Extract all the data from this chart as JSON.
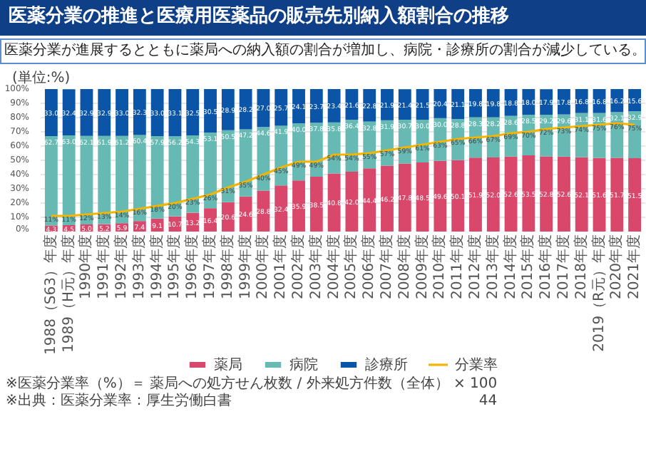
{
  "chart_data": {
    "type": "bar",
    "stacked": true,
    "title": "医薬分業の推進と医療用医薬品の販売先別納入額割合の推移",
    "subtitle": "医薬分業が進展するとともに薬局への納入額の割合が増加し、病院・診療所の割合が減少している。",
    "ylabel": "(単位:%)",
    "categories": [
      "1988（S63）年度",
      "1989（H元）年度",
      "1990年度",
      "1991年度",
      "1992年度",
      "1993年度",
      "1994年度",
      "1995年度",
      "1996年度",
      "1997年度",
      "1998年度",
      "1999年度",
      "2000年度",
      "2001年度",
      "2002年度",
      "2003年度",
      "2004年度",
      "2005年度",
      "2006年度",
      "2007年度",
      "2008年度",
      "2009年度",
      "2010年度",
      "2011年度",
      "2012年度",
      "2013年度",
      "2014年度",
      "2015年度",
      "2016年度",
      "2017年度",
      "2018年度",
      "2019（R元）年度",
      "2020年度",
      "2021年度"
    ],
    "series": [
      {
        "name": "薬局",
        "color": "#d9476b",
        "values": [
          4.3,
          4.5,
          5.0,
          5.2,
          5.9,
          7.4,
          9.1,
          10.7,
          13.2,
          16.4,
          20.6,
          24.6,
          28.8,
          32.4,
          35.9,
          38.5,
          40.8,
          42.0,
          44.4,
          46.2,
          47.8,
          48.5,
          49.6,
          50.1,
          51.9,
          52.0,
          52.6,
          53.5,
          52.8,
          52.6,
          52.1,
          51.6,
          51.7,
          51.5
        ],
        "value_labels": [
          "4.3",
          "4.5",
          "5.0",
          "5.2",
          "5.9",
          "7.4",
          "9.1",
          "10.7",
          "13.2",
          "16.4",
          "20.6",
          "24.6",
          "28.8",
          "32.4",
          "35.9",
          "38.5",
          "40.8",
          "42.0",
          "44.4",
          "46.2",
          "47.8",
          "48.5",
          "49.6",
          "50.1",
          "51.9",
          "52.0",
          "52.6",
          "53.5",
          "52.8",
          "52.6",
          "52.1",
          "51.6",
          "51.7",
          "51.5"
        ]
      },
      {
        "name": "病院",
        "color": "#66bab3",
        "values": [
          62.7,
          63.0,
          62.1,
          61.9,
          61.2,
          60.4,
          57.9,
          56.2,
          54.3,
          53.1,
          50.5,
          47.2,
          44.6,
          41.9,
          40.0,
          37.8,
          35.8,
          36.4,
          32.8,
          31.9,
          30.7,
          30.0,
          30.0,
          28.8,
          28.3,
          28.2,
          28.6,
          28.5,
          29.2,
          29.6,
          31.1,
          31.6,
          32.1,
          32.9
        ],
        "value_labels": [
          "62.7",
          "63.0",
          "62.1",
          "61.9",
          "61.2",
          "60.4",
          "57.9",
          "56.2",
          "54.3",
          "53.1",
          "50.5",
          "47.2",
          "44.6",
          "41.9",
          "40.0",
          "37.8",
          "35.8",
          "36.4",
          "32.8",
          "31.9",
          "30.7",
          "30.0",
          "30.0",
          "28.8",
          "28.3",
          "28.2",
          "28.6",
          "28.5",
          "29.2",
          "29.6",
          "31.1",
          "31.6",
          "32.1",
          "32.9"
        ]
      },
      {
        "name": "診療所",
        "color": "#0b55a8",
        "values": [
          33.0,
          32.4,
          32.9,
          32.9,
          33.0,
          32.3,
          33.0,
          33.1,
          32.5,
          30.5,
          28.9,
          28.2,
          27.0,
          25.7,
          24.1,
          23.7,
          23.4,
          21.6,
          22.8,
          21.9,
          21.4,
          21.5,
          20.4,
          21.1,
          19.8,
          19.8,
          18.8,
          18.0,
          17.9,
          17.8,
          16.8,
          16.8,
          16.2,
          15.6
        ],
        "value_labels": [
          "33.0",
          "32.4",
          "32.9",
          "32.9",
          "33.0",
          "32.3",
          "33.0",
          "33.1",
          "32.5",
          "30.5",
          "28.9",
          "28.2",
          "27.0",
          "25.7",
          "24.1",
          "23.7",
          "23.4",
          "21.6",
          "22.8",
          "21.9",
          "21.4",
          "21.5",
          "20.4",
          "21.1",
          "19.8",
          "19.8",
          "18.8",
          "18.0",
          "17.9",
          "17.8",
          "16.8",
          "16.8",
          "16.2",
          "15.6"
        ]
      },
      {
        "name": "分業率",
        "type": "line",
        "color": "#f5b400",
        "values": [
          11,
          11,
          12,
          13,
          14,
          16,
          18,
          20,
          23,
          26,
          31,
          35,
          40,
          45,
          49,
          49,
          54,
          54,
          55,
          57,
          59,
          61,
          63,
          65,
          66,
          67,
          69,
          70,
          72,
          73,
          74,
          75,
          76,
          75
        ],
        "value_labels": [
          "11%",
          "11%",
          "12%",
          "13%",
          "14%",
          "16%",
          "18%",
          "20%",
          "23%",
          "26%",
          "31%",
          "35%",
          "40%",
          "45%",
          "49%",
          "49%",
          "54%",
          "54%",
          "55%",
          "57%",
          "59%",
          "61%",
          "63%",
          "65%",
          "66%",
          "67%",
          "69%",
          "70%",
          "72%",
          "73%",
          "74%",
          "75%",
          "76%",
          "75%"
        ]
      }
    ],
    "ylim": [
      0,
      100
    ],
    "yticks": [
      {
        "value": 0,
        "label": "0%"
      },
      {
        "value": 10,
        "label": "10%"
      },
      {
        "value": 20,
        "label": "20%"
      },
      {
        "value": 30,
        "label": "30%"
      },
      {
        "value": 40,
        "label": "40%"
      },
      {
        "value": 50,
        "label": "50%"
      },
      {
        "value": 60,
        "label": "60%"
      },
      {
        "value": 70,
        "label": "70%"
      },
      {
        "value": 80,
        "label": "80%"
      },
      {
        "value": 90,
        "label": "90%"
      },
      {
        "value": 100,
        "label": "100%"
      }
    ],
    "grid": "y",
    "legend": "bottom",
    "annotations": [
      "※医薬分業率（%）＝ 薬局への処方せん枚数 / 外来処方件数（全体） × 100",
      "※出典：医薬分業率：厚生労働白書",
      "44"
    ]
  }
}
